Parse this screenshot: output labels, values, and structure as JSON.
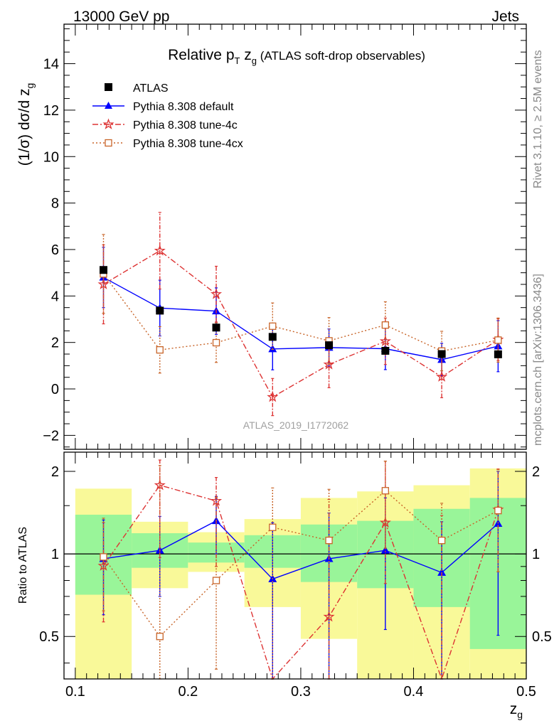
{
  "header": {
    "left": "13000 GeV pp",
    "right": "Jets"
  },
  "side_labels": {
    "rivet": "Rivet 3.1.10, ≥ 2.5M events",
    "mcplots": "mcplots.cern.ch [arXiv:1306.3436]"
  },
  "colors": {
    "atlas": "#000000",
    "default": "#0000ff",
    "tune4c": "#dd3333",
    "tune4cx": "#c86428",
    "band_inner": "#99f599",
    "band_outer": "#f9f999"
  },
  "chart_data": [
    {
      "type": "line",
      "panel": "main",
      "title_main": "Relative p",
      "title_sub_T": "T",
      "title_z": " z",
      "title_sub_g": "g",
      "title_rest": " (ATLAS soft-drop observables)",
      "ylabel": "(1/σ) dσ/d z",
      "ylabel_sub": "g",
      "watermark": "ATLAS_2019_I1772062",
      "xlim": [
        0.09,
        0.5
      ],
      "ylim": [
        -2.6,
        15.7
      ],
      "yticks": [
        -2,
        0,
        2,
        4,
        6,
        8,
        10,
        12,
        14
      ],
      "yticklabels": [
        "−2",
        "0",
        "2",
        "4",
        "6",
        "8",
        "10",
        "12",
        "14"
      ],
      "grid": false,
      "legend_position": "top-left",
      "x": [
        0.125,
        0.175,
        0.225,
        0.275,
        0.325,
        0.375,
        0.425,
        0.475
      ],
      "series": [
        {
          "name": "ATLAS",
          "key": "atlas",
          "style": "data",
          "values": [
            5.12,
            3.37,
            2.64,
            2.24,
            1.88,
            1.64,
            1.5,
            1.49
          ]
        },
        {
          "name": "Pythia 8.308 default",
          "key": "default",
          "style": "solid-triangle",
          "values": [
            4.8,
            3.48,
            3.35,
            1.72,
            1.78,
            1.73,
            1.26,
            1.84
          ],
          "err": [
            1.3,
            1.2,
            1.0,
            0.9,
            0.8,
            0.9,
            0.7,
            1.1
          ]
        },
        {
          "name": "Pythia 8.308 tune-4c",
          "key": "tune4c",
          "style": "dashdot-star",
          "values": [
            4.5,
            5.95,
            4.08,
            -0.35,
            1.05,
            2.05,
            0.52,
            2.12
          ],
          "err": [
            1.7,
            1.65,
            1.2,
            0.8,
            1.0,
            1.0,
            0.9,
            0.9
          ]
        },
        {
          "name": "Pythia 8.308 tune-4cx",
          "key": "tune4cx",
          "style": "dotted-square",
          "values": [
            4.95,
            1.68,
            1.99,
            2.7,
            2.07,
            2.75,
            1.63,
            2.1
          ],
          "err": [
            1.7,
            1.0,
            0.85,
            1.0,
            1.0,
            1.0,
            0.85,
            0.95
          ]
        }
      ]
    },
    {
      "type": "line",
      "panel": "ratio",
      "ylabel": "Ratio to ATLAS",
      "xlabel": "z",
      "xlabel_sub": "g",
      "xlim": [
        0.09,
        0.5
      ],
      "ylim": [
        0.35,
        2.35
      ],
      "yticks": [
        0.5,
        1,
        2
      ],
      "yticklabels": [
        "0.5",
        "1",
        "2"
      ],
      "xticks": [
        0.1,
        0.2,
        0.3,
        0.4,
        0.5
      ],
      "xticklabels": [
        "0.1",
        "0.2",
        "0.3",
        "0.4",
        "0.5"
      ],
      "reference_line": 1,
      "bins": [
        [
          0.1,
          0.15
        ],
        [
          0.15,
          0.2
        ],
        [
          0.2,
          0.25
        ],
        [
          0.25,
          0.3
        ],
        [
          0.3,
          0.35
        ],
        [
          0.35,
          0.4
        ],
        [
          0.4,
          0.45
        ],
        [
          0.45,
          0.5
        ]
      ],
      "band_inner": [
        [
          0.71,
          1.39
        ],
        [
          0.89,
          1.19
        ],
        [
          0.93,
          1.1
        ],
        [
          0.89,
          1.17
        ],
        [
          0.79,
          1.28
        ],
        [
          0.75,
          1.32
        ],
        [
          0.64,
          1.46
        ],
        [
          0.45,
          1.6
        ]
      ],
      "band_outer": [
        [
          0.35,
          1.73
        ],
        [
          0.75,
          1.31
        ],
        [
          0.86,
          1.2
        ],
        [
          0.64,
          1.34
        ],
        [
          0.49,
          1.6
        ],
        [
          0.35,
          1.69
        ],
        [
          0.35,
          1.78
        ],
        [
          0.35,
          2.05
        ]
      ],
      "x": [
        0.125,
        0.175,
        0.225,
        0.275,
        0.325,
        0.375,
        0.425,
        0.475
      ],
      "series": [
        {
          "name": "Pythia 8.308 default",
          "key": "default",
          "style": "solid-triangle",
          "values": [
            0.96,
            1.03,
            1.32,
            0.81,
            0.96,
            1.03,
            0.855,
            1.29
          ],
          "err_low": [
            0.6,
            0.7,
            1.0,
            0.35,
            0.35,
            0.53,
            0.35,
            0.505
          ],
          "err_high": [
            1.33,
            1.37,
            1.62,
            1.3,
            1.41,
            1.6,
            1.31,
            2.0
          ]
        },
        {
          "name": "Pythia 8.308 tune-4c",
          "key": "tune4c",
          "style": "dashdot-star",
          "values": [
            0.905,
            1.78,
            1.56,
            0.2,
            0.59,
            1.3,
            0.3,
            1.45
          ],
          "err_low": [
            0.565,
            0.97,
            0.9,
            0.2,
            0.35,
            0.78,
            0.35,
            0.86
          ],
          "err_high": [
            1.3,
            2.2,
            1.9,
            0.35,
            1.58,
            2.18,
            1.38,
            2.04
          ]
        },
        {
          "name": "Pythia 8.308 tune-4cx",
          "key": "tune4cx",
          "style": "dotted-square",
          "values": [
            0.975,
            0.5,
            0.8,
            1.25,
            1.12,
            1.7,
            1.12,
            1.44
          ],
          "err_low": [
            0.62,
            0.35,
            0.38,
            0.35,
            0.35,
            1.05,
            0.35,
            0.86
          ],
          "err_high": [
            1.35,
            2.1,
            1.61,
            1.74,
            1.72,
            2.18,
            1.53,
            2.03
          ]
        }
      ]
    }
  ]
}
